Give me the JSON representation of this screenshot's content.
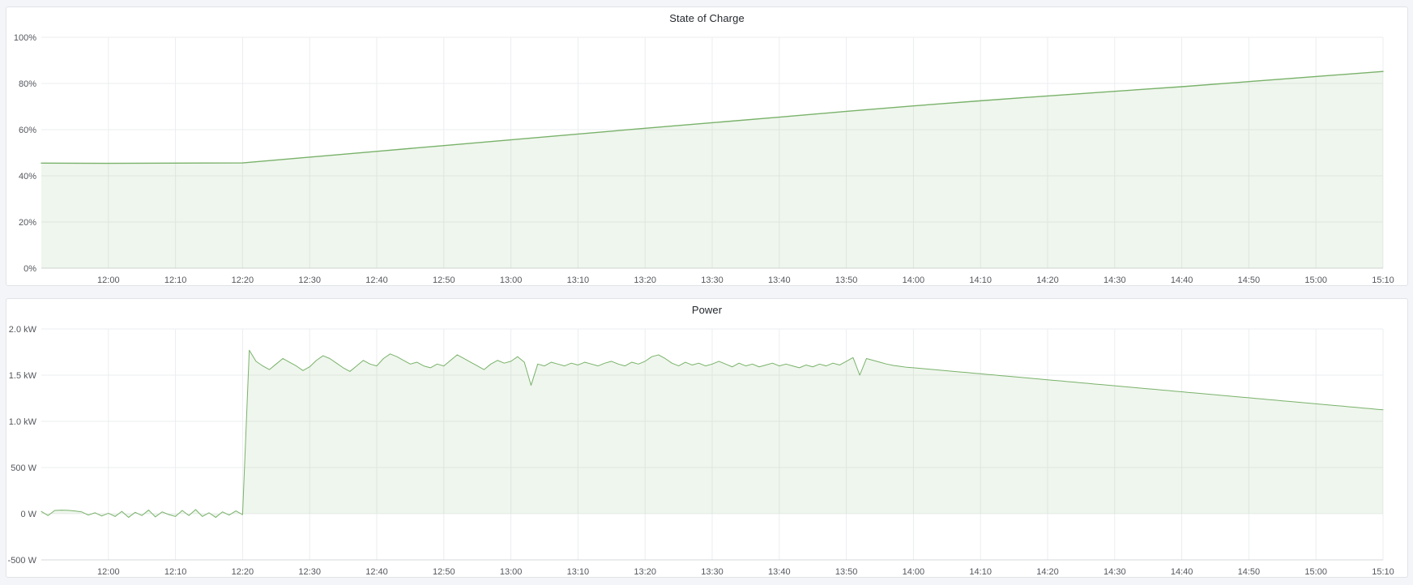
{
  "page": {
    "background": "#f4f5f8",
    "panel_background": "#ffffff",
    "panel_border": "#e0e3e7"
  },
  "panels": [
    {
      "title": "State of Charge"
    },
    {
      "title": "Power"
    }
  ],
  "chart_data": [
    {
      "type": "area",
      "title": "State of Charge",
      "xlabel": "",
      "ylabel": "",
      "ylim": [
        0,
        100
      ],
      "x_start_time": "11:50",
      "x_end_time": "15:10",
      "x_total_min": 200,
      "grid": true,
      "legend": false,
      "color": "#79b26a",
      "fill_opacity": 0.12,
      "line_width": 1.4,
      "yticks": [
        {
          "v": 0,
          "label": "0%"
        },
        {
          "v": 20,
          "label": "20%"
        },
        {
          "v": 40,
          "label": "40%"
        },
        {
          "v": 60,
          "label": "60%"
        },
        {
          "v": 80,
          "label": "80%"
        },
        {
          "v": 100,
          "label": "100%"
        }
      ],
      "xticks": [
        {
          "m": 10,
          "label": "12:00"
        },
        {
          "m": 20,
          "label": "12:10"
        },
        {
          "m": 30,
          "label": "12:20"
        },
        {
          "m": 40,
          "label": "12:30"
        },
        {
          "m": 50,
          "label": "12:40"
        },
        {
          "m": 60,
          "label": "12:50"
        },
        {
          "m": 70,
          "label": "13:00"
        },
        {
          "m": 80,
          "label": "13:10"
        },
        {
          "m": 90,
          "label": "13:20"
        },
        {
          "m": 100,
          "label": "13:30"
        },
        {
          "m": 110,
          "label": "13:40"
        },
        {
          "m": 120,
          "label": "13:50"
        },
        {
          "m": 130,
          "label": "14:00"
        },
        {
          "m": 140,
          "label": "14:10"
        },
        {
          "m": 150,
          "label": "14:20"
        },
        {
          "m": 160,
          "label": "14:30"
        },
        {
          "m": 170,
          "label": "14:40"
        },
        {
          "m": 180,
          "label": "14:50"
        },
        {
          "m": 190,
          "label": "15:00"
        },
        {
          "m": 200,
          "label": "15:10"
        }
      ],
      "series": {
        "name": "State of Charge",
        "unit": "%",
        "start_min": 0,
        "step_min": 10,
        "values": [
          45.5,
          45.4,
          45.5,
          45.6,
          48.1,
          50.6,
          53.1,
          55.6,
          58.1,
          60.6,
          63.0,
          65.4,
          67.9,
          70.3,
          72.5,
          74.6,
          76.6,
          78.6,
          80.8,
          83.0,
          85.2
        ]
      }
    },
    {
      "type": "area",
      "title": "Power",
      "xlabel": "",
      "ylabel": "",
      "ylim": [
        -500,
        2000
      ],
      "x_start_time": "11:50",
      "x_end_time": "15:10",
      "x_total_min": 200,
      "grid": true,
      "legend": false,
      "color": "#79b26a",
      "fill_opacity": 0.12,
      "line_width": 1,
      "yticks": [
        {
          "v": -500,
          "label": "-500 W"
        },
        {
          "v": 0,
          "label": "0 W"
        },
        {
          "v": 500,
          "label": "500 W"
        },
        {
          "v": 1000,
          "label": "1.0 kW"
        },
        {
          "v": 1500,
          "label": "1.5 kW"
        },
        {
          "v": 2000,
          "label": "2.0 kW"
        }
      ],
      "xticks": [
        {
          "m": 10,
          "label": "12:00"
        },
        {
          "m": 20,
          "label": "12:10"
        },
        {
          "m": 30,
          "label": "12:20"
        },
        {
          "m": 40,
          "label": "12:30"
        },
        {
          "m": 50,
          "label": "12:40"
        },
        {
          "m": 60,
          "label": "12:50"
        },
        {
          "m": 70,
          "label": "13:00"
        },
        {
          "m": 80,
          "label": "13:10"
        },
        {
          "m": 90,
          "label": "13:20"
        },
        {
          "m": 100,
          "label": "13:30"
        },
        {
          "m": 110,
          "label": "13:40"
        },
        {
          "m": 120,
          "label": "13:50"
        },
        {
          "m": 130,
          "label": "14:00"
        },
        {
          "m": 140,
          "label": "14:10"
        },
        {
          "m": 150,
          "label": "14:20"
        },
        {
          "m": 160,
          "label": "14:30"
        },
        {
          "m": 170,
          "label": "14:40"
        },
        {
          "m": 180,
          "label": "14:50"
        },
        {
          "m": 190,
          "label": "15:00"
        },
        {
          "m": 200,
          "label": "15:10"
        }
      ],
      "series": {
        "name": "Power",
        "unit": "W",
        "start_min": 0,
        "step_min": 1,
        "values": [
          25,
          -20,
          35,
          38,
          36,
          30,
          20,
          -15,
          10,
          -25,
          5,
          -30,
          25,
          -40,
          15,
          -20,
          40,
          -35,
          20,
          -10,
          -30,
          35,
          -20,
          45,
          -30,
          10,
          -40,
          20,
          -15,
          30,
          -10,
          1770,
          1650,
          1600,
          1560,
          1620,
          1680,
          1640,
          1600,
          1550,
          1590,
          1660,
          1710,
          1680,
          1630,
          1580,
          1540,
          1600,
          1660,
          1620,
          1600,
          1680,
          1730,
          1700,
          1660,
          1620,
          1640,
          1600,
          1580,
          1620,
          1600,
          1660,
          1720,
          1680,
          1640,
          1600,
          1560,
          1620,
          1660,
          1630,
          1650,
          1700,
          1640,
          1390,
          1620,
          1600,
          1640,
          1620,
          1600,
          1630,
          1610,
          1640,
          1620,
          1600,
          1630,
          1650,
          1620,
          1600,
          1640,
          1620,
          1650,
          1700,
          1720,
          1680,
          1630,
          1600,
          1640,
          1610,
          1630,
          1600,
          1620,
          1650,
          1620,
          1590,
          1630,
          1600,
          1620,
          1590,
          1610,
          1630,
          1600,
          1620,
          1600,
          1580,
          1610,
          1590,
          1620,
          1600,
          1630,
          1610,
          1650,
          1690,
          1500,
          1680,
          1660,
          1640,
          1620,
          1605,
          1595,
          1585,
          1580,
          1573,
          1567,
          1560,
          1554,
          1547,
          1541,
          1534,
          1528,
          1521,
          1515,
          1508,
          1502,
          1495,
          1489,
          1482,
          1476,
          1469,
          1463,
          1456,
          1450,
          1443,
          1437,
          1430,
          1424,
          1417,
          1411,
          1404,
          1398,
          1391,
          1385,
          1378,
          1372,
          1365,
          1359,
          1352,
          1346,
          1339,
          1333,
          1326,
          1320,
          1313,
          1307,
          1300,
          1294,
          1287,
          1281,
          1274,
          1268,
          1261,
          1255,
          1248,
          1242,
          1235,
          1229,
          1222,
          1216,
          1209,
          1203,
          1196,
          1190,
          1183,
          1177,
          1170,
          1164,
          1157,
          1151,
          1144,
          1138,
          1131,
          1125
        ]
      }
    }
  ]
}
